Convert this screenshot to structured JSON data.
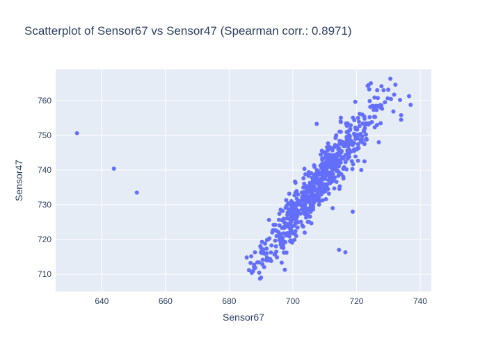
{
  "chart_data": {
    "type": "scatter",
    "title": "Scatterplot of Sensor67 vs Sensor47 (Spearman corr.: 0.8971)",
    "xlabel": "Sensor67",
    "ylabel": "Sensor47",
    "xlim": [
      625.5,
      743.5
    ],
    "ylim": [
      705,
      769
    ],
    "x_ticks": [
      640,
      660,
      680,
      700,
      720,
      740
    ],
    "y_ticks": [
      710,
      720,
      730,
      740,
      750,
      760
    ],
    "grid": true,
    "legend": "none",
    "colors": {
      "background": "#ffffff",
      "plot_bg": "#e5ecf6",
      "grid": "#ffffff",
      "marker": "#636efa",
      "text": "#2a3f5f"
    },
    "outliers": [
      {
        "x": 632.2,
        "y": 750.6
      },
      {
        "x": 643.8,
        "y": 740.4
      },
      {
        "x": 651.0,
        "y": 733.5
      },
      {
        "x": 707.5,
        "y": 753.3
      },
      {
        "x": 714.5,
        "y": 717.0
      },
      {
        "x": 716.5,
        "y": 716.3
      },
      {
        "x": 718.8,
        "y": 728.0
      },
      {
        "x": 712.5,
        "y": 729.0
      },
      {
        "x": 698.0,
        "y": 716.2
      },
      {
        "x": 696.5,
        "y": 713.3
      },
      {
        "x": 690.0,
        "y": 709.0
      },
      {
        "x": 685.5,
        "y": 714.8
      },
      {
        "x": 732.2,
        "y": 764.6
      },
      {
        "x": 736.5,
        "y": 761.3
      },
      {
        "x": 737.0,
        "y": 758.8
      },
      {
        "x": 734.0,
        "y": 755.8
      },
      {
        "x": 734.0,
        "y": 754.5
      },
      {
        "x": 723.8,
        "y": 764.5
      },
      {
        "x": 724.5,
        "y": 765.0
      },
      {
        "x": 726.5,
        "y": 763.0
      },
      {
        "x": 728.5,
        "y": 763.0
      },
      {
        "x": 722.5,
        "y": 742.5
      },
      {
        "x": 721.5,
        "y": 740.0
      },
      {
        "x": 727.0,
        "y": 748.0
      },
      {
        "x": 715.0,
        "y": 754.0
      }
    ],
    "cluster": {
      "count": 640,
      "x_center": 707.5,
      "x_sd": 10.4,
      "slope": 1.19,
      "y_at_center": 735.6,
      "resid_sd": 3.4,
      "x_range": [
        686,
        735
      ],
      "seed": 67
    }
  }
}
